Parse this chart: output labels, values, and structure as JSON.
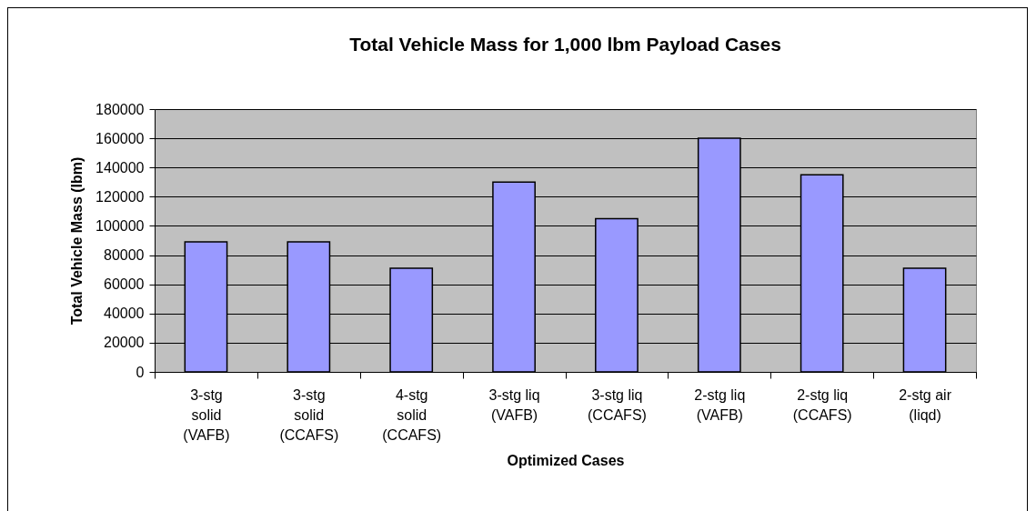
{
  "chart_data": {
    "type": "bar",
    "title": "Total Vehicle Mass for 1,000 lbm Payload Cases",
    "xlabel": "Optimized Cases",
    "ylabel": "Total Vehicle Mass (lbm)",
    "categories": [
      "3-stg solid (VAFB)",
      "3-stg solid (CCAFS)",
      "4-stg solid (CCAFS)",
      "3-stg liq (VAFB)",
      "3-stg liq (CCAFS)",
      "2-stg liq (VAFB)",
      "2-stg liq (CCAFS)",
      "2-stg air (liqd)"
    ],
    "values": [
      89000,
      89000,
      71000,
      130000,
      105000,
      160000,
      135000,
      71000
    ],
    "color": "#9999ff",
    "ylim": [
      0,
      180000
    ],
    "yticks": [
      0,
      20000,
      40000,
      60000,
      80000,
      100000,
      120000,
      140000,
      160000,
      180000
    ],
    "grid": "y"
  }
}
